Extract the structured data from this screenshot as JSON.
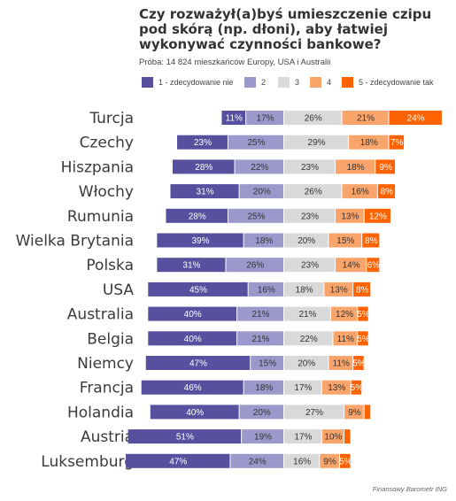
{
  "title_lines": [
    "Czy rozważył(a)byś umieszczenie czipu",
    "pod skórą (np. dłoni), aby łatwiej",
    "wykonywać czynności bankowe?"
  ],
  "subtitle": "Próba: 14 824 mieszkańców Europy, USA i Australii",
  "source": "Finansowy Barometr ING",
  "colors": [
    "#56509e",
    "#9b98cc",
    "#d9d9d9",
    "#f9a46b",
    "#ff6200"
  ],
  "label_colors": [
    "#ffffff",
    "#333333",
    "#333333",
    "#333333",
    "#ffffff"
  ],
  "chart_data": {
    "type": "bar",
    "orientation": "horizontal",
    "stacked": true,
    "categories": [
      "Turcja",
      "Czechy",
      "Hiszpania",
      "Włochy",
      "Rumunia",
      "Wielka Brytania",
      "Polska",
      "USA",
      "Australia",
      "Belgia",
      "Niemcy",
      "Francja",
      "Holandia",
      "Austria",
      "Luksemburg"
    ],
    "series": [
      {
        "name": "1 - zdecydowanie nie",
        "values": [
          11,
          23,
          28,
          31,
          28,
          39,
          31,
          45,
          40,
          40,
          47,
          46,
          40,
          51,
          47
        ]
      },
      {
        "name": "2",
        "values": [
          17,
          25,
          22,
          20,
          25,
          18,
          26,
          16,
          21,
          21,
          15,
          18,
          20,
          19,
          24
        ]
      },
      {
        "name": "3",
        "values": [
          26,
          29,
          23,
          26,
          23,
          20,
          23,
          18,
          21,
          22,
          20,
          17,
          27,
          17,
          16
        ]
      },
      {
        "name": "4",
        "values": [
          21,
          18,
          18,
          16,
          13,
          15,
          14,
          13,
          12,
          11,
          11,
          13,
          9,
          10,
          9
        ]
      },
      {
        "name": "5 - zdecydowanie tak",
        "values": [
          24,
          7,
          9,
          8,
          12,
          8,
          6,
          8,
          5,
          5,
          5,
          5,
          3,
          3,
          5
        ]
      }
    ],
    "data_labels": [
      [
        "11%",
        "17%",
        "26%",
        "21%",
        "24%"
      ],
      [
        "23%",
        "25%",
        "29%",
        "18%",
        "7%"
      ],
      [
        "28%",
        "22%",
        "23%",
        "18%",
        "9%"
      ],
      [
        "31%",
        "20%",
        "26%",
        "16%",
        "8%"
      ],
      [
        "28%",
        "25%",
        "23%",
        "13%",
        "12%"
      ],
      [
        "39%",
        "18%",
        "20%",
        "15%",
        "8%"
      ],
      [
        "31%",
        "26%",
        "23%",
        "14%",
        "6%"
      ],
      [
        "45%",
        "16%",
        "18%",
        "13%",
        "8%"
      ],
      [
        "40%",
        "21%",
        "21%",
        "12%",
        "5%"
      ],
      [
        "40%",
        "21%",
        "22%",
        "11%",
        "5%"
      ],
      [
        "47%",
        "15%",
        "20%",
        "11%",
        "5%"
      ],
      [
        "46%",
        "18%",
        "17%",
        "13%",
        "5%"
      ],
      [
        "40%",
        "20%",
        "27%",
        "9%",
        ""
      ],
      [
        "51%",
        "19%",
        "17%",
        "10%",
        ""
      ],
      [
        "47%",
        "24%",
        "16%",
        "9%",
        "5%"
      ]
    ],
    "anchor": "boundary between categories 2 and 3",
    "legend_position": "top",
    "grid": false
  }
}
